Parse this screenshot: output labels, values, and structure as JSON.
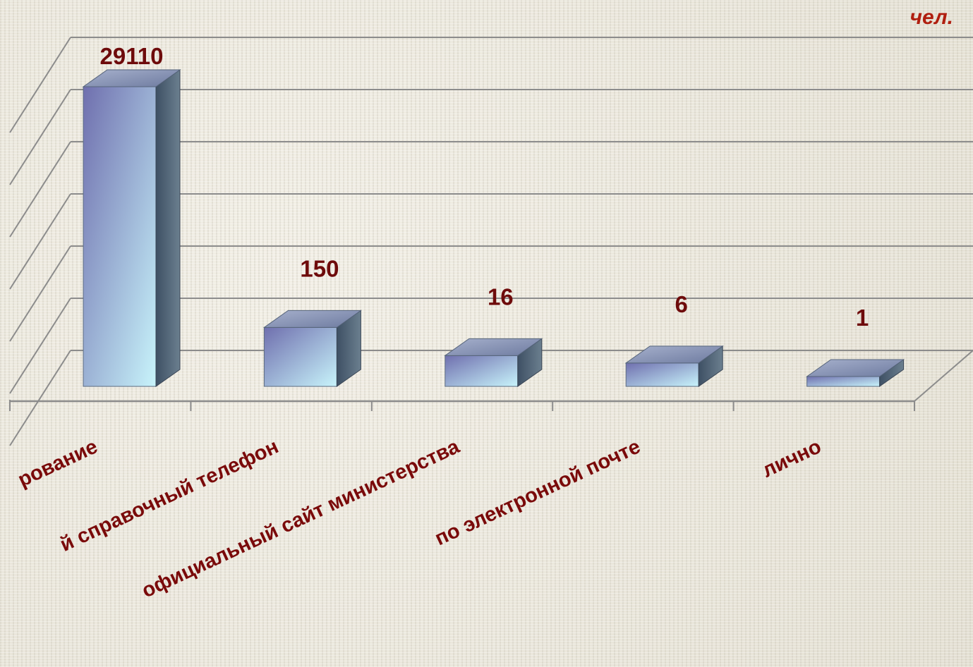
{
  "unit_label": "чел.",
  "chart_data": {
    "type": "bar",
    "style": "3d-column",
    "grid": true,
    "legend": "none",
    "categories": [
      "рование",
      "й справочный телефон",
      "официальный сайт министерства",
      "по электронной почте",
      "лично"
    ],
    "values": [
      29110,
      150,
      16,
      6,
      1
    ],
    "data_labels": [
      "29110",
      "150",
      "16",
      "6",
      "1"
    ],
    "colors": {
      "bar_front_top": "#6f6fae",
      "bar_front_bottom": "#c8f4fb",
      "bar_side": "#36465a",
      "bar_top": "#8f9cbc",
      "value_text": "#6e0b0b",
      "category_text": "#7a0a0a",
      "unit_text": "#b01f10",
      "gridline": "#8c8c8c"
    }
  }
}
